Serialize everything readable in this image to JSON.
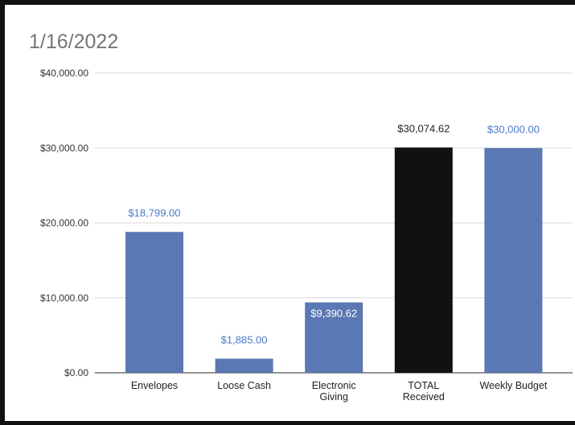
{
  "chart_data": {
    "type": "bar",
    "title": "1/16/2022",
    "xlabel": "",
    "ylabel": "",
    "categories": [
      [
        "Envelopes"
      ],
      [
        "Loose Cash"
      ],
      [
        "Electronic",
        "Giving"
      ],
      [
        "TOTAL",
        "Received"
      ],
      [
        "Weekly Budget"
      ]
    ],
    "values": [
      18799.0,
      1885.0,
      9390.62,
      30074.62,
      30000.0
    ],
    "data_labels": [
      "$18,799.00",
      "$1,885.00",
      "$9,390.62",
      "$30,074.62",
      "$30,000.00"
    ],
    "bar_colors": [
      "#5a78b3",
      "#5a78b3",
      "#5a78b3",
      "#111111",
      "#5a78b3"
    ],
    "label_colors": [
      "#4a79c9",
      "#4a79c9",
      "#ffffff",
      "#222222",
      "#4a79c9"
    ],
    "label_inside": [
      false,
      false,
      true,
      false,
      false
    ],
    "ylim": [
      0,
      40000
    ],
    "y_ticks": [
      0,
      10000,
      20000,
      30000,
      40000
    ],
    "y_tick_labels": [
      "$0.00",
      "$10,000.00",
      "$20,000.00",
      "$30,000.00",
      "$40,000.00"
    ],
    "grid": true,
    "legend": "none"
  }
}
